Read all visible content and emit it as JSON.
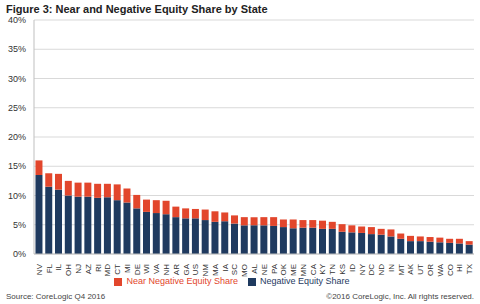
{
  "chart_data": {
    "type": "bar",
    "title": "Figure 3: Near and Negative Equity Share by State",
    "annotations": [
      "Source: CoreLogic Q4  2016",
      "©2016 CoreLogic, Inc. All rights reserved."
    ],
    "categories": [
      "NV",
      "FL",
      "IL",
      "OH",
      "NJ",
      "AZ",
      "RI",
      "MD",
      "CT",
      "MI",
      "DE",
      "WI",
      "VA",
      "NH",
      "AR",
      "GA",
      "US",
      "NM",
      "MA",
      "IA",
      "SC",
      "MO",
      "AL",
      "NE",
      "PA",
      "OK",
      "ME",
      "MN",
      "CA",
      "KY",
      "TN",
      "KS",
      "ID",
      "NY",
      "DC",
      "ND",
      "IN",
      "MT",
      "AK",
      "UT",
      "OR",
      "WA",
      "CO",
      "HI",
      "TX"
    ],
    "series": [
      {
        "name": "Negative Equity Share",
        "color": "#1f3a5f",
        "values": [
          13.5,
          11.5,
          11.0,
          10.0,
          9.8,
          9.8,
          9.6,
          9.7,
          9.2,
          8.8,
          7.8,
          7.2,
          7.0,
          6.8,
          6.3,
          6.1,
          6.1,
          5.8,
          5.5,
          5.6,
          5.2,
          4.9,
          4.9,
          4.9,
          4.8,
          4.6,
          4.4,
          4.5,
          4.5,
          4.3,
          4.3,
          3.8,
          3.7,
          3.6,
          3.4,
          3.3,
          3.0,
          2.6,
          2.2,
          2.2,
          2.1,
          2.0,
          1.9,
          1.8,
          1.6
        ]
      },
      {
        "name": "Near Negative Equity Share",
        "color": "#e2462c",
        "values": [
          2.5,
          2.3,
          2.7,
          2.5,
          2.4,
          2.4,
          2.4,
          2.3,
          2.7,
          2.4,
          2.3,
          2.1,
          2.2,
          2.3,
          1.8,
          1.7,
          1.6,
          1.8,
          1.8,
          1.5,
          1.4,
          1.4,
          1.4,
          1.4,
          1.5,
          1.3,
          1.5,
          1.3,
          1.3,
          1.4,
          1.2,
          1.3,
          1.2,
          1.1,
          1.2,
          1.0,
          1.2,
          0.9,
          0.9,
          0.8,
          0.8,
          0.8,
          0.7,
          0.8,
          0.6
        ]
      }
    ],
    "stacked": true,
    "ylim": [
      0,
      40
    ],
    "yticks": [
      {
        "value": 0,
        "label": "0%"
      },
      {
        "value": 5,
        "label": "5%"
      },
      {
        "value": 10,
        "label": "10%"
      },
      {
        "value": 15,
        "label": "15%"
      },
      {
        "value": 20,
        "label": "20%"
      },
      {
        "value": 25,
        "label": "25%"
      },
      {
        "value": 30,
        "label": "30%"
      },
      {
        "value": 35,
        "label": "35%"
      },
      {
        "value": 40,
        "label": "40%"
      }
    ],
    "grid": true,
    "legend": "bottom"
  }
}
